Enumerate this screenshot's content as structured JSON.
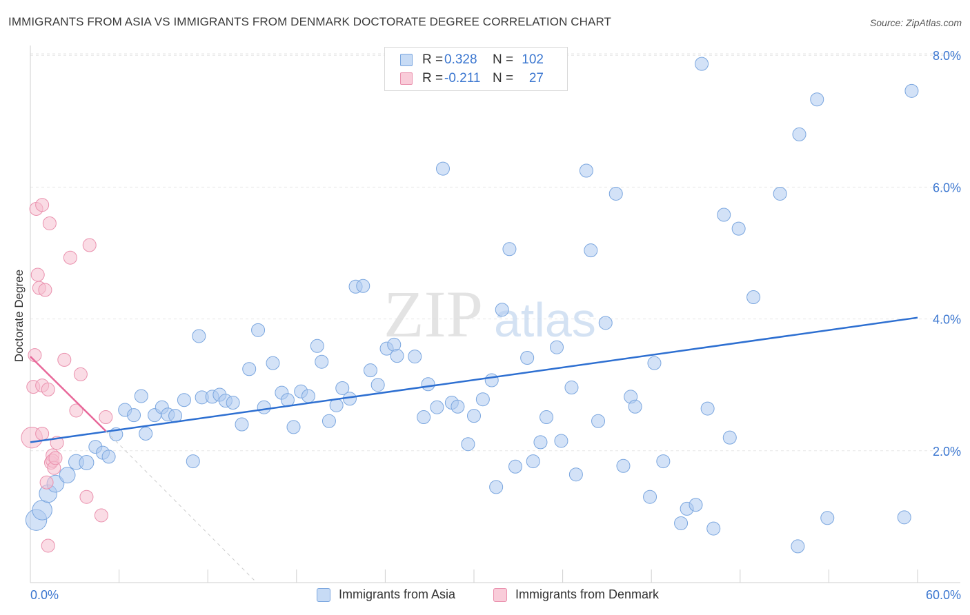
{
  "title": "IMMIGRANTS FROM ASIA VS IMMIGRANTS FROM DENMARK DOCTORATE DEGREE CORRELATION CHART",
  "source": "Source: ZipAtlas.com",
  "watermark": {
    "zip": "ZIP",
    "atlas": "atlas"
  },
  "legend": {
    "asia": {
      "r_label": "R =",
      "r_value": "0.328",
      "n_label": "N =",
      "n_value": "102"
    },
    "denmark": {
      "r_label": "R =",
      "r_value": "-0.211",
      "n_label": "N =",
      "n_value": "27"
    }
  },
  "bottom_legend": {
    "asia": "Immigrants from Asia",
    "denmark": "Immigrants from Denmark"
  },
  "colors": {
    "asia_fill": "#aecbf0",
    "asia_stroke": "#7aa6df",
    "asia_line": "#2d6fd1",
    "denmark_fill": "#f6bfd0",
    "denmark_stroke": "#ea90ad",
    "denmark_line": "#e8689a",
    "tick_label": "#3a76d0",
    "grid": "#e6e6e6"
  },
  "chart_data": {
    "type": "scatter",
    "title": "IMMIGRANTS FROM ASIA VS IMMIGRANTS FROM DENMARK DOCTORATE DEGREE CORRELATION CHART",
    "xlabel": "",
    "ylabel": "Doctorate Degree",
    "xlim": [
      0,
      60
    ],
    "ylim": [
      0,
      8.4
    ],
    "x_tick_labels": [
      "0.0%",
      "60.0%"
    ],
    "y_ticks": [
      2,
      4,
      6,
      8
    ],
    "y_tick_labels": [
      "2.0%",
      "4.0%",
      "6.0%",
      "8.0%"
    ],
    "grid": true,
    "series": [
      {
        "name": "Immigrants from Asia",
        "trend": {
          "x": [
            0,
            60
          ],
          "y": [
            2.13,
            4.02
          ]
        },
        "points": [
          [
            0.4,
            0.95,
            1.6
          ],
          [
            0.8,
            1.1,
            1.5
          ],
          [
            1.2,
            1.35,
            1.35
          ],
          [
            1.7,
            1.5,
            1.3
          ],
          [
            2.5,
            1.63,
            1.2
          ],
          [
            3.1,
            1.83,
            1.15
          ],
          [
            3.8,
            1.82,
            1.1
          ],
          [
            4.4,
            2.06,
            1.0
          ],
          [
            4.9,
            1.97,
            1.0
          ],
          [
            5.3,
            1.91,
            1.0
          ],
          [
            5.8,
            2.25,
            1.0
          ],
          [
            6.4,
            2.62,
            1.0
          ],
          [
            7.0,
            2.54,
            1.0
          ],
          [
            7.5,
            2.83,
            1.0
          ],
          [
            7.8,
            2.26,
            1.0
          ],
          [
            8.4,
            2.54,
            1.0
          ],
          [
            8.9,
            2.66,
            1.0
          ],
          [
            9.3,
            2.55,
            1.0
          ],
          [
            9.8,
            2.53,
            1.0
          ],
          [
            10.4,
            2.77,
            1.0
          ],
          [
            11.0,
            1.84,
            1.0
          ],
          [
            11.4,
            3.74,
            1.0
          ],
          [
            11.6,
            2.81,
            1.0
          ],
          [
            12.3,
            2.82,
            1.0
          ],
          [
            12.8,
            2.85,
            1.0
          ],
          [
            13.2,
            2.76,
            1.0
          ],
          [
            13.7,
            2.73,
            1.0
          ],
          [
            14.3,
            2.4,
            1.0
          ],
          [
            14.8,
            3.24,
            1.0
          ],
          [
            15.4,
            3.83,
            1.0
          ],
          [
            15.8,
            2.66,
            1.0
          ],
          [
            16.4,
            3.33,
            1.0
          ],
          [
            17.0,
            2.88,
            1.0
          ],
          [
            17.4,
            2.77,
            1.0
          ],
          [
            17.8,
            2.36,
            1.0
          ],
          [
            18.3,
            2.9,
            1.0
          ],
          [
            18.8,
            2.83,
            1.0
          ],
          [
            19.4,
            3.59,
            1.0
          ],
          [
            19.7,
            3.35,
            1.0
          ],
          [
            20.2,
            2.45,
            1.0
          ],
          [
            20.7,
            2.69,
            1.0
          ],
          [
            21.1,
            2.95,
            1.0
          ],
          [
            21.6,
            2.79,
            1.0
          ],
          [
            22.0,
            4.49,
            1.0
          ],
          [
            22.5,
            4.5,
            1.0
          ],
          [
            23.0,
            3.22,
            1.0
          ],
          [
            23.5,
            3.0,
            1.0
          ],
          [
            24.1,
            3.55,
            1.0
          ],
          [
            24.6,
            3.61,
            1.0
          ],
          [
            24.8,
            3.44,
            1.0
          ],
          [
            26.0,
            3.43,
            1.0
          ],
          [
            26.6,
            2.51,
            1.0
          ],
          [
            26.9,
            3.01,
            1.0
          ],
          [
            27.5,
            2.66,
            1.0
          ],
          [
            27.9,
            6.28,
            1.0
          ],
          [
            28.5,
            2.73,
            1.0
          ],
          [
            28.9,
            2.67,
            1.0
          ],
          [
            29.6,
            2.1,
            1.0
          ],
          [
            30.0,
            2.53,
            1.0
          ],
          [
            30.6,
            2.78,
            1.0
          ],
          [
            31.2,
            3.07,
            1.0
          ],
          [
            31.5,
            1.45,
            1.0
          ],
          [
            31.9,
            4.14,
            1.0
          ],
          [
            32.4,
            5.06,
            1.0
          ],
          [
            32.8,
            1.76,
            1.0
          ],
          [
            33.6,
            3.41,
            1.0
          ],
          [
            34.0,
            1.84,
            1.0
          ],
          [
            34.5,
            2.13,
            1.0
          ],
          [
            34.9,
            2.51,
            1.0
          ],
          [
            35.6,
            3.57,
            1.0
          ],
          [
            35.9,
            2.15,
            1.0
          ],
          [
            36.6,
            2.96,
            1.0
          ],
          [
            36.9,
            1.64,
            1.0
          ],
          [
            37.6,
            6.25,
            1.0
          ],
          [
            37.9,
            5.04,
            1.0
          ],
          [
            38.4,
            2.45,
            1.0
          ],
          [
            38.9,
            3.94,
            1.0
          ],
          [
            39.6,
            5.9,
            1.0
          ],
          [
            40.1,
            1.77,
            1.0
          ],
          [
            40.6,
            2.82,
            1.0
          ],
          [
            40.9,
            2.67,
            1.0
          ],
          [
            41.9,
            1.3,
            1.0
          ],
          [
            42.2,
            3.33,
            1.0
          ],
          [
            42.8,
            1.84,
            1.0
          ],
          [
            44.0,
            0.9,
            1.0
          ],
          [
            44.4,
            1.12,
            1.0
          ],
          [
            45.0,
            1.18,
            1.0
          ],
          [
            45.4,
            7.87,
            1.0
          ],
          [
            45.8,
            2.64,
            1.0
          ],
          [
            46.2,
            0.82,
            1.0
          ],
          [
            46.9,
            5.58,
            1.0
          ],
          [
            47.3,
            2.2,
            1.0
          ],
          [
            47.9,
            5.37,
            1.0
          ],
          [
            48.9,
            4.33,
            1.0
          ],
          [
            50.7,
            5.9,
            1.0
          ],
          [
            51.9,
            0.55,
            1.0
          ],
          [
            52.0,
            6.8,
            1.0
          ],
          [
            53.2,
            7.33,
            1.0
          ],
          [
            53.9,
            0.98,
            1.0
          ],
          [
            59.1,
            0.99,
            1.0
          ],
          [
            59.6,
            7.46,
            1.0
          ]
        ]
      },
      {
        "name": "Immigrants from Denmark",
        "trend": {
          "x": [
            0,
            5.1
          ],
          "y": [
            3.43,
            2.3
          ]
        },
        "trend_dashed": {
          "x": [
            5.1,
            15.3
          ],
          "y": [
            2.3,
            0.0
          ]
        },
        "points": [
          [
            0.1,
            2.2,
            1.6
          ],
          [
            0.2,
            2.97,
            1.0
          ],
          [
            0.3,
            3.45,
            1.0
          ],
          [
            0.4,
            5.67,
            1.0
          ],
          [
            0.5,
            4.67,
            1.0
          ],
          [
            0.6,
            4.47,
            1.0
          ],
          [
            0.8,
            2.99,
            1.0
          ],
          [
            0.8,
            2.26,
            1.0
          ],
          [
            0.8,
            5.73,
            1.0
          ],
          [
            1.0,
            4.44,
            1.0
          ],
          [
            1.1,
            1.52,
            1.0
          ],
          [
            1.2,
            2.93,
            1.0
          ],
          [
            1.2,
            0.56,
            1.0
          ],
          [
            1.3,
            5.45,
            1.0
          ],
          [
            1.4,
            1.82,
            1.0
          ],
          [
            1.5,
            1.93,
            1.0
          ],
          [
            1.5,
            1.85,
            1.0
          ],
          [
            1.6,
            1.74,
            1.0
          ],
          [
            1.7,
            1.89,
            1.0
          ],
          [
            1.8,
            2.12,
            1.0
          ],
          [
            2.3,
            3.38,
            1.0
          ],
          [
            2.7,
            4.93,
            1.0
          ],
          [
            3.1,
            2.61,
            1.0
          ],
          [
            3.4,
            3.16,
            1.0
          ],
          [
            3.8,
            1.3,
            1.0
          ],
          [
            4.0,
            5.12,
            1.0
          ],
          [
            4.8,
            1.02,
            1.0
          ],
          [
            5.1,
            2.51,
            1.0
          ]
        ]
      }
    ]
  }
}
